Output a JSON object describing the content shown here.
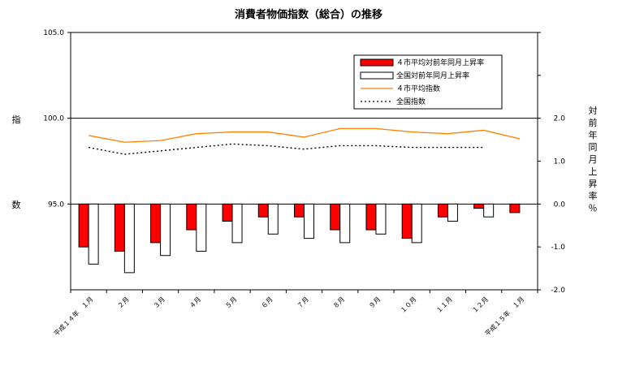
{
  "chart_data": {
    "type": "bar",
    "title": "消費者物価指数（総合）の推移",
    "categories": [
      "平成１４年　１月",
      "２月",
      "３月",
      "４月",
      "５月",
      "６月",
      "７月",
      "８月",
      "９月",
      "１０月",
      "１１月",
      "１２月",
      "平成１５年　１月"
    ],
    "left_axis": {
      "label_chars": [
        "指",
        "数"
      ],
      "range": [
        90,
        105
      ],
      "ticks": [
        "105.0",
        "100.0",
        "95.0"
      ],
      "tick_values": [
        105,
        100,
        95
      ]
    },
    "right_axis": {
      "label_chars": [
        "対",
        "前",
        "年",
        "同",
        "月",
        "上",
        "昇",
        "率",
        "％"
      ],
      "range": [
        -2,
        4
      ],
      "ticks": [
        "2.0",
        "1.0",
        "0.0",
        "-1.0",
        "-2.0"
      ],
      "tick_values": [
        2,
        1,
        0,
        -1,
        -2
      ]
    },
    "series": [
      {
        "name": "４市平均対前年同月上昇率",
        "kind": "bar",
        "axis": "right",
        "color": "#ff0000",
        "values": [
          -1.0,
          -1.1,
          -0.9,
          -0.6,
          -0.4,
          -0.3,
          -0.3,
          -0.6,
          -0.6,
          -0.8,
          -0.3,
          -0.1,
          -0.2
        ]
      },
      {
        "name": "全国対前年同月上昇率",
        "kind": "bar",
        "axis": "right",
        "color": "#ffffff",
        "values": [
          -1.4,
          -1.6,
          -1.2,
          -1.1,
          -0.9,
          -0.7,
          -0.8,
          -0.9,
          -0.7,
          -0.9,
          -0.4,
          -0.3,
          null
        ]
      },
      {
        "name": "４市平均指数",
        "kind": "line",
        "axis": "left",
        "color": "#ff8000",
        "values": [
          99.0,
          98.6,
          98.7,
          99.1,
          99.2,
          99.2,
          98.9,
          99.4,
          99.4,
          99.2,
          99.1,
          99.3,
          98.8
        ]
      },
      {
        "name": "全国指数",
        "kind": "dotted-line",
        "axis": "left",
        "color": "#000000",
        "values": [
          98.3,
          97.9,
          98.1,
          98.3,
          98.5,
          98.4,
          98.2,
          98.4,
          98.4,
          98.3,
          98.3,
          98.3,
          null
        ]
      }
    ],
    "legend_position": "top-right",
    "grid": false
  }
}
